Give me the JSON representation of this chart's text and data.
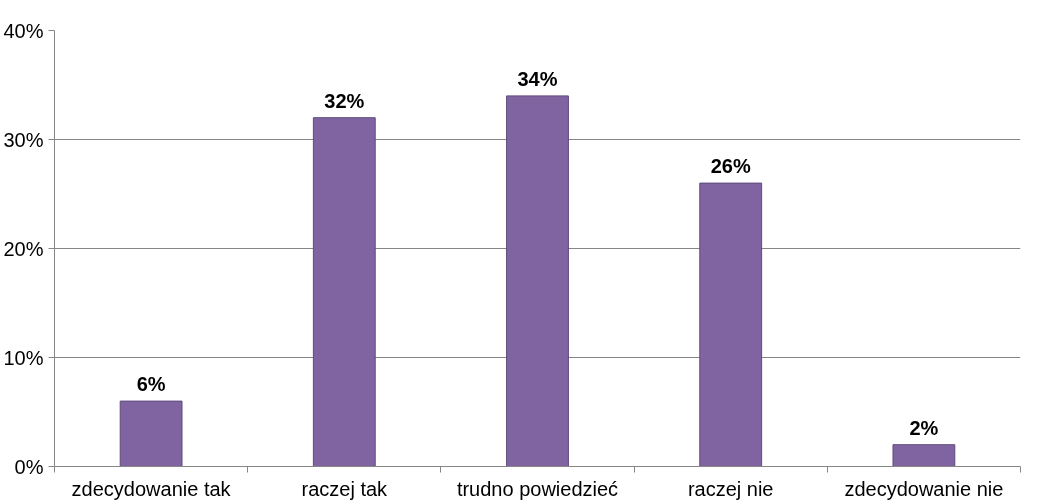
{
  "chart_data": {
    "type": "bar",
    "categories": [
      "zdecydowanie tak",
      "raczej tak",
      "trudno powiedzieć",
      "raczej nie",
      "zdecydowanie nie"
    ],
    "values": [
      6,
      32,
      34,
      26,
      2
    ],
    "value_labels": [
      "6%",
      "32%",
      "34%",
      "26%",
      "2%"
    ],
    "color": "#8064a2",
    "ylim": [
      0,
      40
    ],
    "yticks": [
      {
        "value": 0,
        "label": "0%"
      },
      {
        "value": 10,
        "label": "10%"
      },
      {
        "value": 20,
        "label": "20%"
      },
      {
        "value": 30,
        "label": "30%"
      },
      {
        "value": 40,
        "label": "40%"
      }
    ],
    "grid": "y"
  }
}
